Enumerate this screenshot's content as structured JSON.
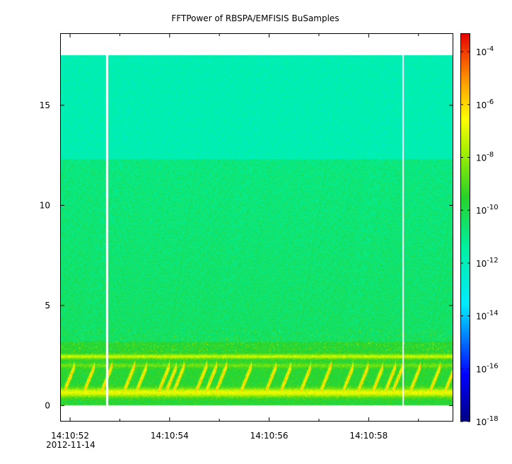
{
  "chart_data": {
    "type": "heatmap",
    "title": "FFTPower of RBSPA/EMFISIS  BuSamples",
    "xlabel": "",
    "ylabel": "",
    "x_time_range": [
      "14:10:51.8",
      "14:10:59.7"
    ],
    "x_ticks": [
      {
        "t": 52,
        "label": "14:10:52",
        "sublabel": "2012-11-14"
      },
      {
        "t": 54,
        "label": "14:10:54"
      },
      {
        "t": 56,
        "label": "14:10:56"
      },
      {
        "t": 58,
        "label": "14:10:58"
      }
    ],
    "x_minor_ticks": [
      53,
      55,
      57,
      59
    ],
    "ylim": [
      -0.8,
      18.6
    ],
    "y_ticks": [
      0,
      5,
      10,
      15
    ],
    "data_extent": {
      "t_start": 51.8,
      "t_end": 59.7,
      "f_min": 0.0,
      "f_max": 17.5
    },
    "data_gaps": [
      {
        "t_start": 52.73,
        "t_end": 52.77
      },
      {
        "t_start": 58.67,
        "t_end": 58.71
      }
    ],
    "band_breaks": [
      {
        "f": 12.3,
        "from_log_power": -11.8,
        "to_log_power": -10.4
      }
    ],
    "low_freq_features": [
      {
        "f": 2.45,
        "log_power": -7.3
      },
      {
        "f": 2.0,
        "log_power": -8.5
      },
      {
        "f": 0.65,
        "log_power": -6.8
      }
    ],
    "chorus_elements_t": [
      51.9,
      52.3,
      52.65,
      53.1,
      53.35,
      53.8,
      53.95,
      54.1,
      54.55,
      54.75,
      54.95,
      55.45,
      55.95,
      56.25,
      56.65,
      57.05,
      57.5,
      57.8,
      58.1,
      58.35,
      58.5,
      58.85,
      59.25,
      59.55
    ],
    "colorbar": {
      "scale": "log",
      "range_exponent": [
        -18,
        -3.3
      ],
      "ticks": [
        {
          "exp": -4,
          "label": "10",
          "sup": "-4"
        },
        {
          "exp": -6,
          "label": "10",
          "sup": "-6"
        },
        {
          "exp": -8,
          "label": "10",
          "sup": "-8"
        },
        {
          "exp": -10,
          "label": "10",
          "sup": "-10"
        },
        {
          "exp": -12,
          "label": "10",
          "sup": "-12"
        },
        {
          "exp": -14,
          "label": "10",
          "sup": "-14"
        },
        {
          "exp": -16,
          "label": "10",
          "sup": "-16"
        },
        {
          "exp": -18,
          "label": "10",
          "sup": "-18"
        }
      ]
    }
  }
}
